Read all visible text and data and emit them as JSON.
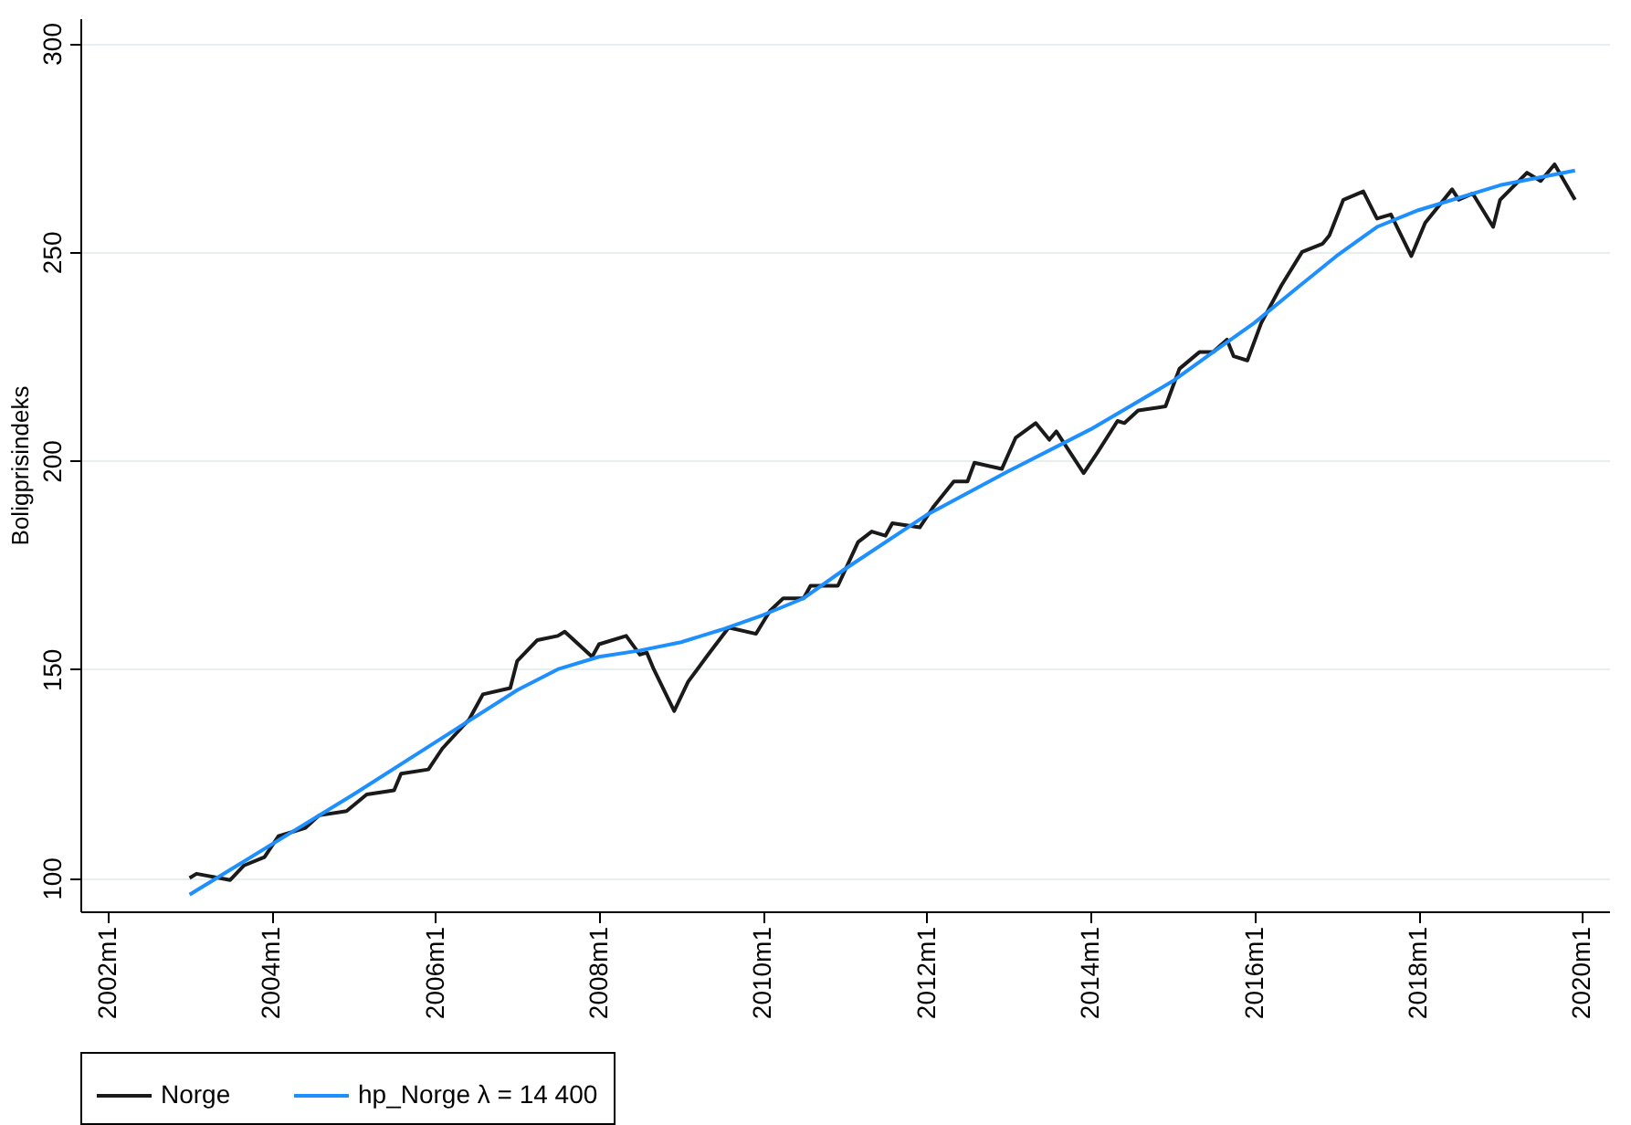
{
  "chart_data": {
    "type": "line",
    "ylabel": "Boligprisindeks",
    "xlim": [
      "2001-09",
      "2020-05"
    ],
    "xticks": [
      {
        "value": "2002-01",
        "label": "2002m1"
      },
      {
        "value": "2004-01",
        "label": "2004m1"
      },
      {
        "value": "2006-01",
        "label": "2006m1"
      },
      {
        "value": "2008-01",
        "label": "2008m1"
      },
      {
        "value": "2010-01",
        "label": "2010m1"
      },
      {
        "value": "2012-01",
        "label": "2012m1"
      },
      {
        "value": "2014-01",
        "label": "2014m1"
      },
      {
        "value": "2016-01",
        "label": "2016m1"
      },
      {
        "value": "2018-01",
        "label": "2018m1"
      },
      {
        "value": "2020-01",
        "label": "2020m1"
      }
    ],
    "ylim": [
      92,
      306
    ],
    "yticks": [
      100,
      150,
      200,
      250,
      300
    ],
    "grid": "y",
    "legend": "bottom",
    "line_style": "solid",
    "marker": "none",
    "series": [
      {
        "name": "Norge",
        "color": "#1a1a1a",
        "x": [
          "2003-01",
          "2003-02",
          "2003-07",
          "2003-09",
          "2003-12",
          "2004-02",
          "2004-06",
          "2004-08",
          "2004-12",
          "2005-03",
          "2005-07",
          "2005-08",
          "2005-12",
          "2006-02",
          "2006-06",
          "2006-08",
          "2006-12",
          "2007-01",
          "2007-04",
          "2007-07",
          "2007-08",
          "2007-12",
          "2008-01",
          "2008-05",
          "2008-07",
          "2008-08",
          "2008-09",
          "2008-12",
          "2009-02",
          "2009-05",
          "2009-08",
          "2009-12",
          "2010-02",
          "2010-04",
          "2010-07",
          "2010-08",
          "2010-12",
          "2011-03",
          "2011-05",
          "2011-07",
          "2011-08",
          "2011-12",
          "2012-02",
          "2012-05",
          "2012-07",
          "2012-08",
          "2012-12",
          "2013-02",
          "2013-05",
          "2013-07",
          "2013-08",
          "2013-12",
          "2014-02",
          "2014-05",
          "2014-06",
          "2014-08",
          "2014-12",
          "2015-02",
          "2015-05",
          "2015-07",
          "2015-09",
          "2015-10",
          "2015-12",
          "2016-02",
          "2016-05",
          "2016-08",
          "2016-11",
          "2016-12",
          "2017-02",
          "2017-05",
          "2017-07",
          "2017-09",
          "2017-12",
          "2018-02",
          "2018-06",
          "2018-07",
          "2018-09",
          "2018-12",
          "2019-01",
          "2019-05",
          "2019-07",
          "2019-09",
          "2019-12"
        ],
        "values": [
          100,
          101,
          99.5,
          103,
          105,
          110,
          112,
          115,
          116,
          120,
          121,
          125,
          126,
          131,
          138,
          144,
          145.5,
          152,
          157,
          158,
          159,
          153,
          156,
          158,
          153.5,
          154,
          150,
          140,
          147,
          153.5,
          160,
          158.5,
          164,
          167,
          167,
          170,
          170,
          180.5,
          183,
          182,
          185,
          184,
          189,
          195,
          195,
          199.5,
          198,
          205.5,
          209,
          205,
          207,
          197,
          202,
          209.5,
          209,
          212,
          213,
          222,
          226,
          226,
          229,
          225,
          224,
          233,
          242,
          250,
          252,
          254,
          262.5,
          264.5,
          258,
          259,
          249,
          257,
          265,
          262.5,
          264,
          256,
          262.5,
          269,
          267,
          271,
          262.5
        ]
      },
      {
        "name": "hp_Norge λ = 14 400",
        "color": "#1e8fff",
        "x": [
          "2003-01",
          "2004-01",
          "2005-01",
          "2006-01",
          "2007-01",
          "2007-07",
          "2008-01",
          "2008-07",
          "2009-01",
          "2009-07",
          "2010-01",
          "2010-07",
          "2011-01",
          "2012-01",
          "2013-01",
          "2014-01",
          "2015-01",
          "2015-07",
          "2016-01",
          "2016-07",
          "2017-01",
          "2017-07",
          "2018-01",
          "2019-01",
          "2019-12"
        ],
        "values": [
          96,
          108,
          120,
          132.5,
          145,
          150,
          153,
          154.5,
          156.5,
          159.5,
          163,
          167,
          174,
          187,
          197.5,
          207.5,
          219,
          226,
          233,
          241,
          249,
          256,
          260,
          266,
          269.5
        ]
      }
    ]
  }
}
